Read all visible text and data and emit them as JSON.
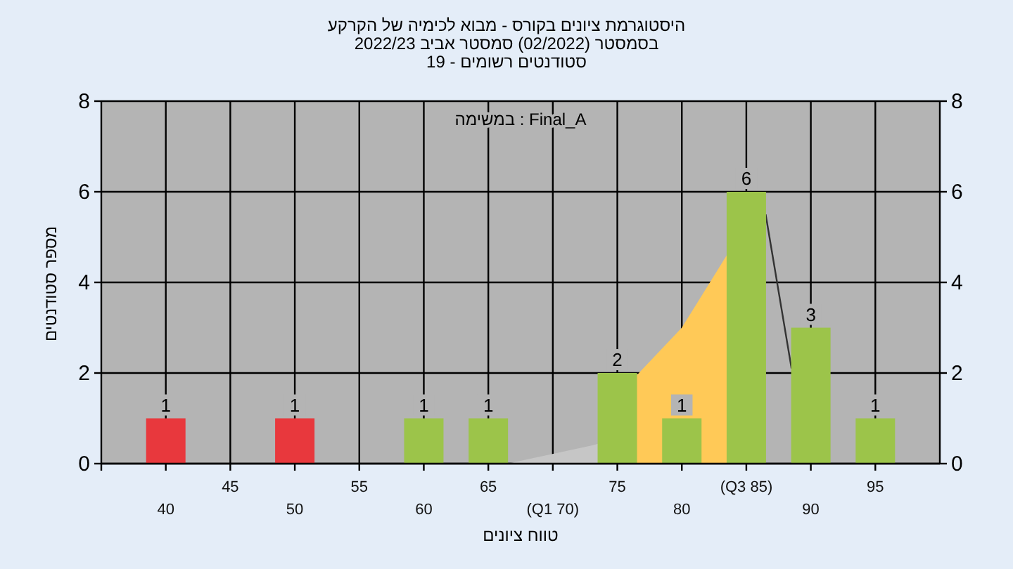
{
  "chart_data": {
    "type": "bar",
    "title": "היסטוגרמת ציונים בקורס - מבוא לכימיה של הקרקע",
    "subtitle": "בסמסטר (02/2022) סמסטר אביב 2022/23",
    "annotations": [
      "סטודנטים רשומים - 19",
      "במשימה : Final_A"
    ],
    "xlabel": "טווח ציונים",
    "ylabel": "מספר סטודנטים",
    "categories": [
      "40",
      "45",
      "50",
      "55",
      "60",
      "65",
      "(Q1 70)",
      "75",
      "80",
      "(Q3 85)",
      "90",
      "95"
    ],
    "series": [
      {
        "colors": [
          "#e8383d",
          "#e8383d",
          "#e8383d",
          "#e8383d",
          "#9cc44a",
          "#9cc44a",
          "#9cc44a",
          "#9cc44a",
          "#9cc44a",
          "#9cc44a",
          "#9cc44a",
          "#9cc44a"
        ],
        "values": [
          1,
          0,
          1,
          0,
          1,
          1,
          0,
          2,
          1,
          6,
          3,
          1
        ],
        "value_labels": [
          "1",
          null,
          "1",
          null,
          "1",
          "1",
          null,
          "2",
          "1",
          "6",
          "3",
          "1"
        ]
      }
    ],
    "ylim": [
      0,
      8
    ],
    "yticks": [
      0,
      2,
      4,
      6,
      8
    ],
    "y2lim": [
      0,
      8
    ],
    "y2ticks": [
      0,
      2,
      4,
      6,
      8
    ],
    "grid": true
  }
}
